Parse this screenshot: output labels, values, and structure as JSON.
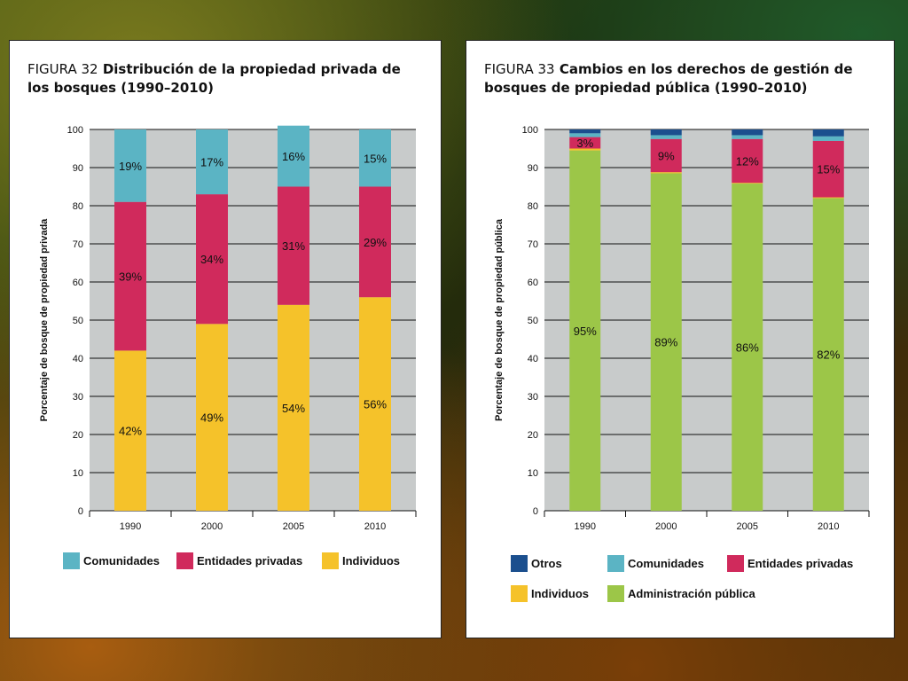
{
  "colors": {
    "comunidades": "#5bb4c4",
    "entidades_privadas": "#d02a5c",
    "individuos": "#f5c22a",
    "administracion_publica": "#9cc648",
    "otros": "#1b4f8e",
    "plot_bg": "#c8cbcb"
  },
  "figures": [
    {
      "label": "FIGURA 32",
      "title": "Distribución de la propiedad privada de los bosques (1990–2010)"
    },
    {
      "label": "FIGURA 33",
      "title": "Cambios en los derechos de gestión de bosques de propiedad pública (1990–2010)"
    }
  ],
  "chart_data": [
    {
      "type": "bar",
      "stacked": true,
      "categories": [
        "1990",
        "2000",
        "2005",
        "2010"
      ],
      "ylabel": "Porcentaje de bosque de propiedad privada",
      "ylim": [
        0,
        100
      ],
      "yticks": [
        0,
        10,
        20,
        30,
        40,
        50,
        60,
        70,
        80,
        90,
        100
      ],
      "grid": true,
      "series": [
        {
          "name": "Individuos",
          "color_key": "individuos",
          "values": [
            42,
            49,
            54,
            56
          ],
          "labels": [
            "42%",
            "49%",
            "54%",
            "56%"
          ]
        },
        {
          "name": "Entidades privadas",
          "color_key": "entidades_privadas",
          "values": [
            39,
            34,
            31,
            29
          ],
          "labels": [
            "39%",
            "34%",
            "31%",
            "29%"
          ]
        },
        {
          "name": "Comunidades",
          "color_key": "comunidades",
          "values": [
            19,
            17,
            16,
            15
          ],
          "labels": [
            "19%",
            "17%",
            "16%",
            "15%"
          ]
        }
      ],
      "legend": [
        "Comunidades",
        "Entidades privadas",
        "Individuos"
      ],
      "legend_colors": [
        "comunidades",
        "entidades_privadas",
        "individuos"
      ]
    },
    {
      "type": "bar",
      "stacked": true,
      "categories": [
        "1990",
        "2000",
        "2005",
        "2010"
      ],
      "ylabel": "Porcentaje de bosque de propiedad pública",
      "ylim": [
        0,
        100
      ],
      "yticks": [
        0,
        10,
        20,
        30,
        40,
        50,
        60,
        70,
        80,
        90,
        100
      ],
      "grid": true,
      "series": [
        {
          "name": "Administración pública",
          "color_key": "administracion_publica",
          "values": [
            94.5,
            88.5,
            85.8,
            82
          ],
          "labels": [
            "95%",
            "89%",
            "86%",
            "82%"
          ]
        },
        {
          "name": "Individuos",
          "color_key": "individuos",
          "values": [
            0.5,
            0.3,
            0.2,
            0.2
          ],
          "labels": [
            "",
            "",
            "",
            ""
          ]
        },
        {
          "name": "Entidades privadas",
          "color_key": "entidades_privadas",
          "values": [
            3,
            8.7,
            11.5,
            14.8
          ],
          "labels": [
            "3%",
            "9%",
            "12%",
            "15%"
          ]
        },
        {
          "name": "Comunidades",
          "color_key": "comunidades",
          "values": [
            1,
            1,
            1,
            1.2
          ],
          "labels": [
            "",
            "",
            "",
            ""
          ]
        },
        {
          "name": "Otros",
          "color_key": "otros",
          "values": [
            1,
            1.5,
            1.5,
            1.8
          ],
          "labels": [
            "",
            "",
            "",
            ""
          ]
        }
      ],
      "legend": [
        "Otros",
        "Comunidades",
        "Entidades privadas",
        "Individuos",
        "Administración pública"
      ],
      "legend_colors": [
        "otros",
        "comunidades",
        "entidades_privadas",
        "individuos",
        "administracion_publica"
      ]
    }
  ]
}
